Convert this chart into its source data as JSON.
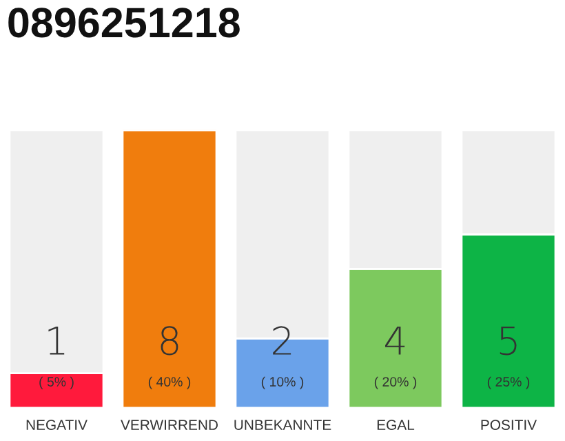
{
  "chart_data": {
    "type": "bar",
    "title": "0896251218",
    "stacked": true,
    "categories": [
      "NEGATIV",
      "VERWIRREND",
      "UNBEKANNTE",
      "EGAL",
      "POSITIV"
    ],
    "series": [
      {
        "colors": [
          "#ff1a3c",
          "#f07d0d",
          "#6aa2ea",
          "#7dc95e",
          "#0db446"
        ],
        "values": [
          1,
          8,
          2,
          4,
          5
        ],
        "value_labels": [
          "1\n( 5% )",
          "8\n( 40% )",
          "2\n( 10% )",
          "4\n( 20% )",
          "5\n( 25% )"
        ]
      },
      {
        "color": "#efefef",
        "values": [
          7,
          0,
          6,
          4,
          3
        ]
      }
    ],
    "ylim": [
      0,
      8
    ],
    "tick_labels": "x",
    "grid": false,
    "legend": false
  }
}
